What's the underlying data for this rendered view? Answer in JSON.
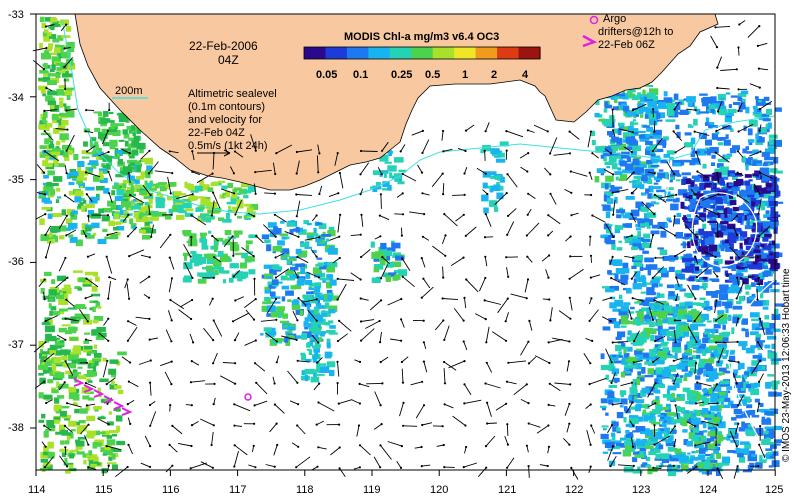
{
  "map": {
    "date": "22-Feb-2006",
    "time": "04Z",
    "land_color": "#f8c9a0",
    "ocean_color": "#ffffff",
    "frame_color": "#000000",
    "contour_color": "#3fe0e0",
    "x_ticks": [
      "114",
      "115",
      "116",
      "117",
      "118",
      "119",
      "120",
      "121",
      "122",
      "123",
      "124",
      "125"
    ],
    "y_ticks": [
      "-33",
      "-34",
      "-35",
      "-36",
      "-37",
      "-38"
    ]
  },
  "colorbar": {
    "title": "MODIS Chl-a mg/m3 v6.4 OC3",
    "ticks": [
      "0.05",
      "0.1",
      "0.25",
      "0.5",
      "1",
      "2",
      "4"
    ],
    "colors": [
      "#2a0a8c",
      "#1c3cd8",
      "#1e78f0",
      "#19b4f0",
      "#26d2b4",
      "#4cd24c",
      "#a8e02a",
      "#f0e628",
      "#f09a1e",
      "#dc3c14",
      "#9c1410"
    ]
  },
  "legend": {
    "isobath": "200m",
    "sealevel_lines": [
      "Altimetric sealevel",
      "(0.1m contours)",
      "and velocity for",
      "22-Feb 04Z",
      "0.5m/s (1kt 24h)"
    ],
    "argo_lines": [
      "Argo",
      "drifters@12h to",
      "22-Feb 06Z"
    ],
    "argo_color": "#e020e0"
  },
  "credit": "© IMOS 23-May-2013 12:06:33 Hobart time"
}
